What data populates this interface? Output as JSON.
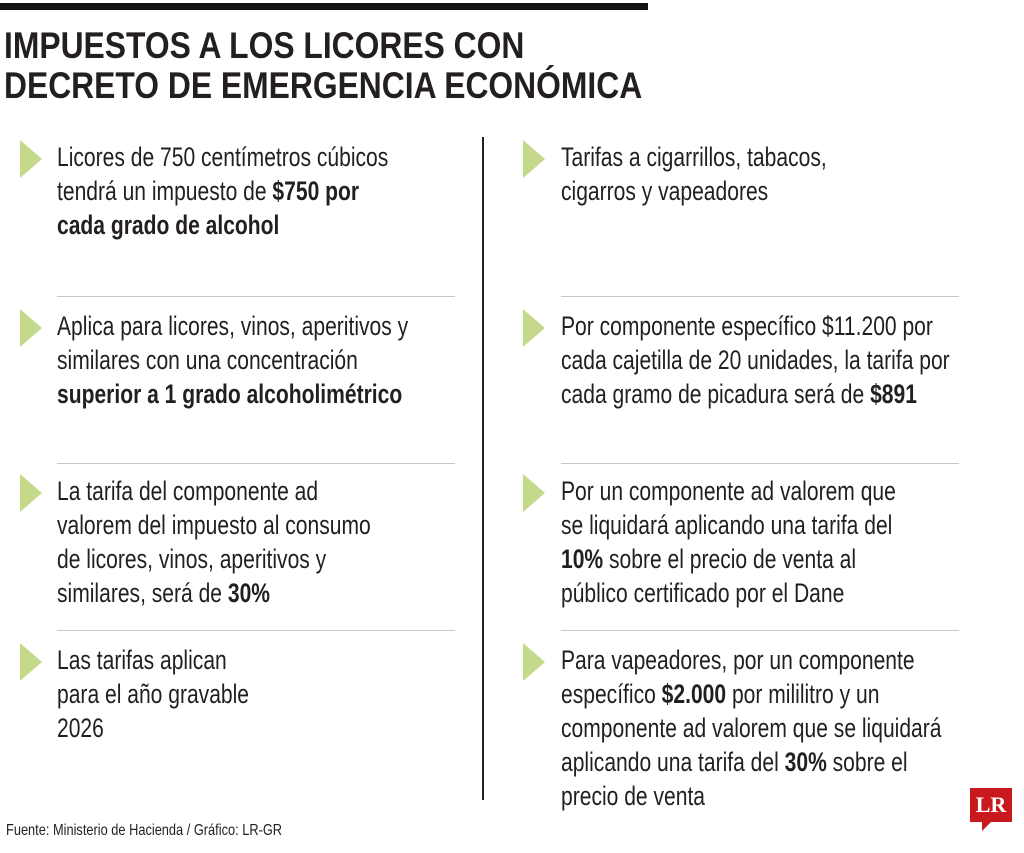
{
  "title": {
    "line1": "IMPUESTOS A LOS LICORES CON",
    "line2": "DECRETO DE EMERGENCIA ECONÓMICA"
  },
  "colors": {
    "bullet": "#c5d98a",
    "logo": "#c8191f"
  },
  "left_items": [
    {
      "lines": [
        [
          {
            "t": "Licores de 750 centímetros cúbicos",
            "b": false
          }
        ],
        [
          {
            "t": "tendrá un impuesto de ",
            "b": false
          },
          {
            "t": "$750 por",
            "b": true
          }
        ],
        [
          {
            "t": "cada grado de alcohol",
            "b": true
          }
        ]
      ]
    },
    {
      "lines": [
        [
          {
            "t": "Aplica para licores, vinos, aperitivos y",
            "b": false
          }
        ],
        [
          {
            "t": "similares con una concentración",
            "b": false
          }
        ],
        [
          {
            "t": "superior a 1 grado alcoholimétrico",
            "b": true
          }
        ]
      ]
    },
    {
      "lines": [
        [
          {
            "t": "La tarifa del componente ad",
            "b": false
          }
        ],
        [
          {
            "t": "valorem del impuesto al consumo",
            "b": false
          }
        ],
        [
          {
            "t": "de licores, vinos, aperitivos y",
            "b": false
          }
        ],
        [
          {
            "t": "similares, será de ",
            "b": false
          },
          {
            "t": "30%",
            "b": true
          }
        ]
      ]
    },
    {
      "lines": [
        [
          {
            "t": "Las tarifas aplican",
            "b": false
          }
        ],
        [
          {
            "t": "para el año gravable",
            "b": false
          }
        ],
        [
          {
            "t": "2026",
            "b": false
          }
        ]
      ]
    }
  ],
  "right_items": [
    {
      "lines": [
        [
          {
            "t": "Tarifas a  cigarrillos, tabacos,",
            "b": false
          }
        ],
        [
          {
            "t": "cigarros y vapeadores",
            "b": false
          }
        ]
      ]
    },
    {
      "lines": [
        [
          {
            "t": "Por componente específico $11.200 por",
            "b": false
          }
        ],
        [
          {
            "t": "cada cajetilla de 20 unidades, la tarifa por",
            "b": false
          }
        ],
        [
          {
            "t": "cada gramo de picadura será de ",
            "b": false
          },
          {
            "t": "$891",
            "b": true
          }
        ]
      ]
    },
    {
      "lines": [
        [
          {
            "t": "Por un componente ad valorem que",
            "b": false
          }
        ],
        [
          {
            "t": "se liquidará aplicando una tarifa del",
            "b": false
          }
        ],
        [
          {
            "t": "10%",
            "b": true
          },
          {
            "t": " sobre el precio de venta al",
            "b": false
          }
        ],
        [
          {
            "t": "público certificado por el Dane",
            "b": false
          }
        ]
      ]
    },
    {
      "lines": [
        [
          {
            "t": "Para vapeadores, por un componente",
            "b": false
          }
        ],
        [
          {
            "t": "específico ",
            "b": false
          },
          {
            "t": "$2.000",
            "b": true
          },
          {
            "t": " por mililitro y un",
            "b": false
          }
        ],
        [
          {
            "t": "componente ad valorem que se liquidará",
            "b": false
          }
        ],
        [
          {
            "t": "aplicando una tarifa del ",
            "b": false
          },
          {
            "t": "30%",
            "b": true
          },
          {
            "t": " sobre el",
            "b": false
          }
        ],
        [
          {
            "t": "precio de venta",
            "b": false
          }
        ]
      ]
    }
  ],
  "footer": {
    "source": "Fuente: Ministerio de Hacienda / Gráfico: LR-GR"
  },
  "logo": {
    "text": "LR"
  }
}
